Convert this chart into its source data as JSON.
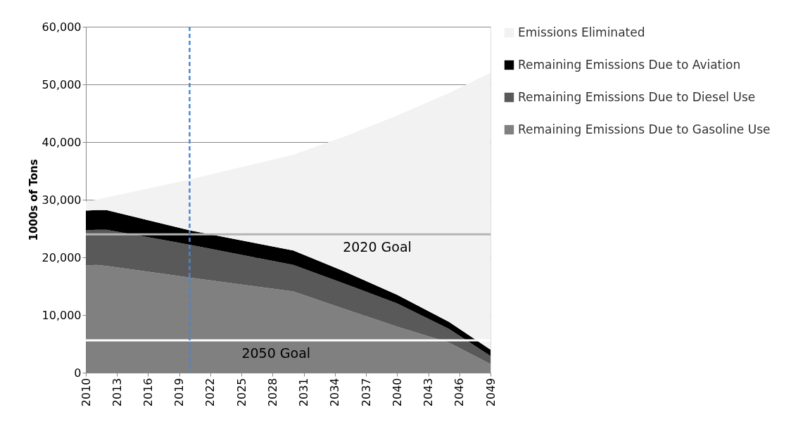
{
  "chart_data": {
    "type": "area",
    "stacked": true,
    "ylabel": "1000s of Tons",
    "x": [
      2010,
      2011,
      2012,
      2020,
      2030,
      2035,
      2040,
      2045,
      2049
    ],
    "series": [
      {
        "name": "Remaining Emissions Due to Gasoline Use",
        "color": "#808080",
        "values": [
          18600,
          18700,
          18500,
          16500,
          14100,
          11000,
          8000,
          5200,
          1500
        ]
      },
      {
        "name": "Remaining Emissions Due to Diesel Use",
        "color": "#595959",
        "values": [
          6100,
          6100,
          6300,
          5700,
          4600,
          4400,
          4000,
          2400,
          1400
        ]
      },
      {
        "name": "Remaining Emissions Due to Aviation",
        "color": "#000000",
        "values": [
          3400,
          3400,
          3400,
          2500,
          2500,
          2100,
          1500,
          1200,
          1100
        ]
      },
      {
        "name": "Emissions Eliminated",
        "color": "#f2f2f2",
        "values": [
          1600,
          1800,
          2200,
          8800,
          16600,
          23500,
          31100,
          39700,
          48000
        ]
      }
    ],
    "xlim": [
      2010,
      2049
    ],
    "xticks": [
      2010,
      2013,
      2016,
      2019,
      2022,
      2025,
      2028,
      2031,
      2034,
      2037,
      2040,
      2043,
      2046,
      2049
    ],
    "ylim": [
      0,
      60000
    ],
    "yticks": [
      0,
      {
        "value": 10000,
        "label": "10,000"
      },
      {
        "value": 20000,
        "label": "20,000"
      },
      {
        "value": 30000,
        "label": "30,000"
      },
      {
        "value": 40000,
        "label": "40,000"
      },
      {
        "value": 50000,
        "label": "50,000"
      },
      {
        "value": 60000,
        "label": "60,000"
      }
    ],
    "grid": "y",
    "legend": "right",
    "ref_lines": [
      {
        "axis": "y",
        "value": 24000,
        "label": "2020 Goal",
        "color": "#b4b4b4"
      },
      {
        "axis": "y",
        "value": 5600,
        "label": "2050 Goal",
        "color": "#ffffff"
      },
      {
        "axis": "x",
        "value": 2020,
        "color": "#4a86d0",
        "line_style": "dashed"
      }
    ]
  }
}
